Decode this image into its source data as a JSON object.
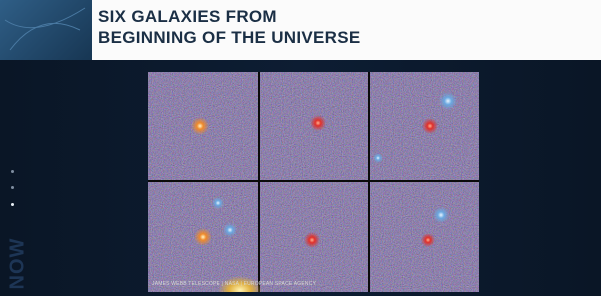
{
  "header": {
    "title_lines": [
      "SIX GALAXIES FROM",
      "BEGINNING OF THE UNIVERSE"
    ]
  },
  "image": {
    "credit": "JAMES WEBB TELESCOPE | NASA | EUROPEAN SPACE AGENCY"
  },
  "sidebar": {
    "label": "NOW"
  }
}
